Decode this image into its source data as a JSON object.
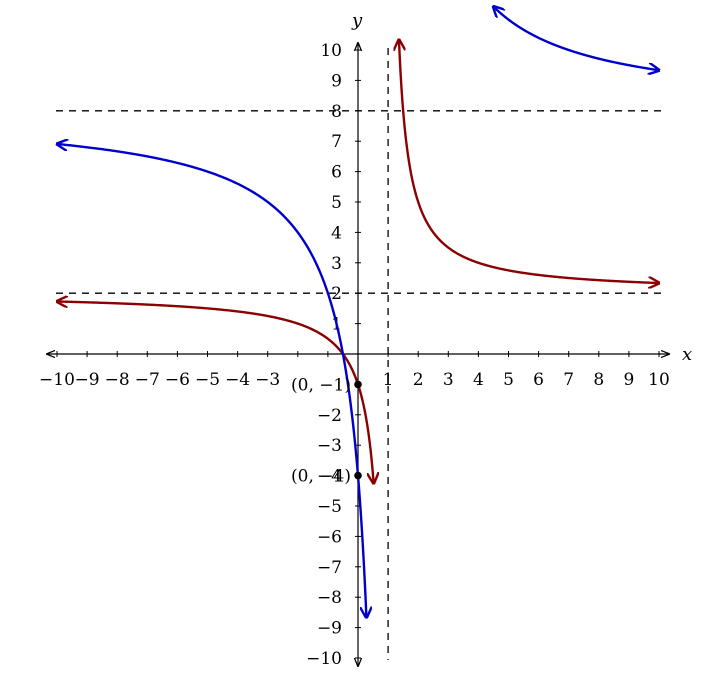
{
  "chart_data": {
    "type": "line",
    "title": "",
    "xlabel": "x",
    "ylabel": "y",
    "xlim": [
      -10,
      10
    ],
    "ylim": [
      -10,
      10
    ],
    "grid": false,
    "x_ticks": [
      -10,
      -9,
      -8,
      -7,
      -6,
      -5,
      -4,
      -3,
      1,
      2,
      3,
      4,
      5,
      6,
      7,
      8,
      9,
      10
    ],
    "x_tick_labels": [
      "−10",
      "−9",
      "−8",
      "−7",
      "−6",
      "−5",
      "−4",
      "−3",
      "1",
      "2",
      "3",
      "4",
      "5",
      "6",
      "7",
      "8",
      "9",
      "10"
    ],
    "y_ticks": [
      -10,
      -9,
      -8,
      -7,
      -6,
      -5,
      -4,
      -3,
      -2,
      1,
      2,
      3,
      4,
      5,
      6,
      7,
      8,
      9,
      10
    ],
    "y_tick_labels": [
      "−10",
      "−9",
      "−8",
      "−7",
      "−6",
      "−5",
      "−4",
      "−3",
      "−2",
      "1",
      "2",
      "3",
      "4",
      "5",
      "6",
      "7",
      "8",
      "9",
      "10"
    ],
    "asymptotes": {
      "vertical": [
        1
      ],
      "horizontal": [
        2,
        8
      ]
    },
    "series": [
      {
        "color": "#8b0000",
        "function": "(2x + 1)/(x - 1)",
        "branches": [
          {
            "x_from": -10,
            "x_to": 0.52,
            "arrow_start": true,
            "arrow_end": true
          },
          {
            "x_from": 1.36,
            "x_to": 10,
            "arrow_start": true,
            "arrow_end": true
          }
        ]
      },
      {
        "color": "#0000cd",
        "function": "(8x + 4)/(x - 1)",
        "branches": [
          {
            "x_from": -10,
            "x_to": 0.28,
            "arrow_start": true,
            "arrow_end": true
          },
          {
            "x_from": 4.5,
            "x_to": 10,
            "arrow_start": true,
            "arrow_end": true
          }
        ]
      }
    ],
    "points": [
      {
        "x": 0,
        "y": -1,
        "label": "(0, −1)"
      },
      {
        "x": 0,
        "y": -4,
        "label": "(0, −4)"
      }
    ]
  }
}
